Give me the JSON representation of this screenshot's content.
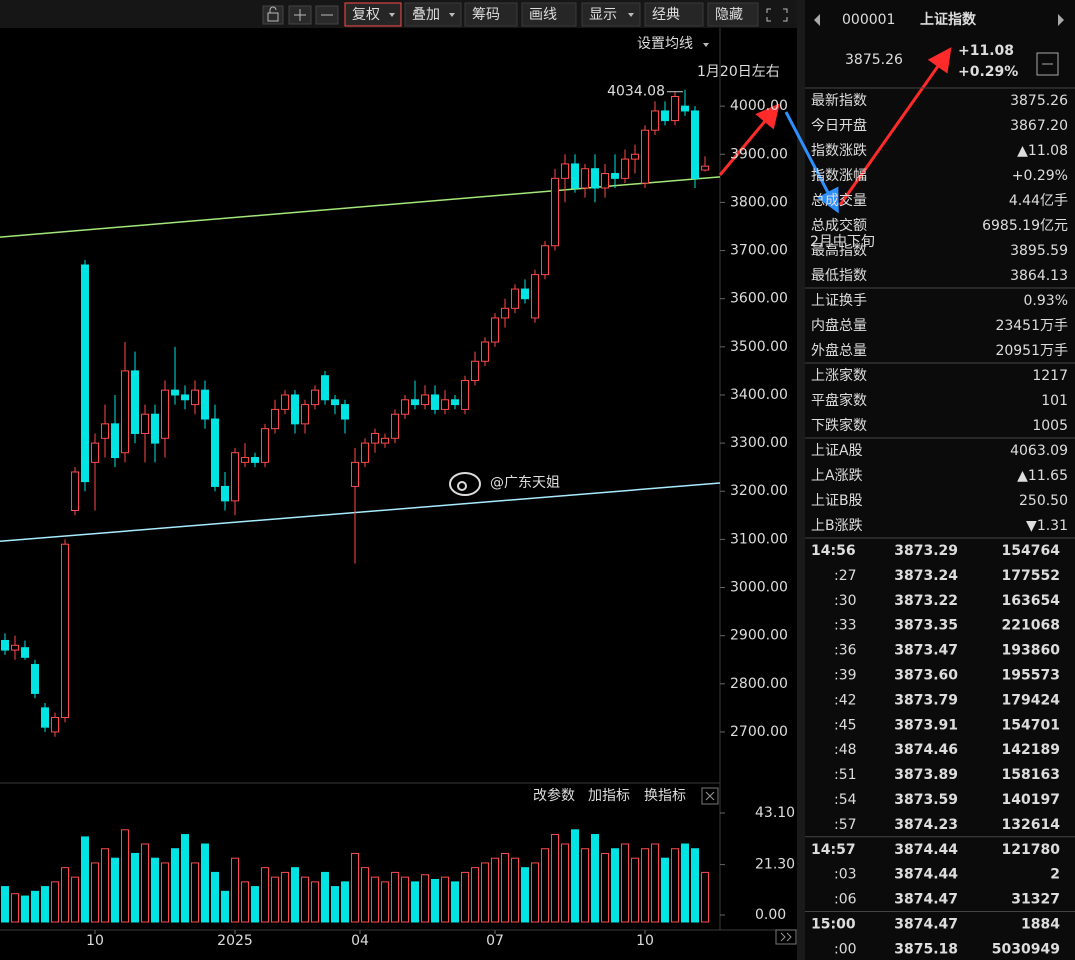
{
  "chart_data": {
    "type": "candlestick",
    "up_color": "#ff4a4a",
    "down_color": "#00e4e4",
    "open": [
      2890,
      2870,
      2875,
      2840,
      2750,
      2700,
      2730,
      3160,
      3670,
      3260,
      3310,
      3340,
      3280,
      3450,
      3320,
      3360,
      3310,
      3410,
      3400,
      3380,
      3410,
      3350,
      3210,
      3180,
      3260,
      3270,
      3260,
      3330,
      3370,
      3400,
      3340,
      3380,
      3440,
      3390,
      3380,
      3210,
      3260,
      3300,
      3300,
      3310,
      3360,
      3390,
      3380,
      3400,
      3370,
      3390,
      3370,
      3430,
      3470,
      3510,
      3560,
      3580,
      3620,
      3560,
      3650,
      3710,
      3850,
      3880,
      3830,
      3870,
      3830,
      3860,
      3850,
      3890,
      3840,
      3950,
      3990,
      3970,
      4000,
      3990,
      3867.2
    ],
    "high": [
      2905,
      2900,
      2890,
      2850,
      2760,
      2740,
      3100,
      3250,
      3680,
      3320,
      3380,
      3400,
      3510,
      3490,
      3380,
      3380,
      3430,
      3500,
      3420,
      3430,
      3430,
      3380,
      3240,
      3290,
      3300,
      3280,
      3340,
      3390,
      3410,
      3410,
      3390,
      3420,
      3450,
      3400,
      3390,
      3290,
      3310,
      3330,
      3320,
      3370,
      3400,
      3430,
      3420,
      3420,
      3410,
      3400,
      3440,
      3490,
      3520,
      3570,
      3600,
      3630,
      3640,
      3660,
      3720,
      3870,
      3900,
      3900,
      3880,
      3900,
      3880,
      3900,
      3910,
      3920,
      3960,
      4010,
      4010,
      4030,
      4034.08,
      4000,
      3895.59
    ],
    "low": [
      2860,
      2850,
      2850,
      2770,
      2700,
      2690,
      2720,
      3150,
      3200,
      3160,
      3270,
      3250,
      3260,
      3300,
      3260,
      3260,
      3270,
      3380,
      3370,
      3360,
      3330,
      3200,
      3160,
      3150,
      3250,
      3250,
      3250,
      3320,
      3360,
      3320,
      3320,
      3370,
      3380,
      3360,
      3320,
      3050,
      3250,
      3280,
      3290,
      3300,
      3350,
      3370,
      3370,
      3360,
      3360,
      3370,
      3360,
      3420,
      3460,
      3500,
      3540,
      3570,
      3590,
      3550,
      3640,
      3700,
      3800,
      3820,
      3810,
      3800,
      3810,
      3830,
      3840,
      3860,
      3830,
      3940,
      3960,
      3960,
      3980,
      3830,
      3864.13
    ],
    "close": [
      2870,
      2880,
      2855,
      2780,
      2710,
      2730,
      3090,
      3240,
      3220,
      3300,
      3340,
      3270,
      3450,
      3320,
      3360,
      3300,
      3410,
      3400,
      3390,
      3410,
      3350,
      3210,
      3180,
      3280,
      3270,
      3260,
      3330,
      3370,
      3400,
      3340,
      3380,
      3410,
      3390,
      3380,
      3350,
      3260,
      3300,
      3320,
      3310,
      3360,
      3390,
      3380,
      3400,
      3370,
      3390,
      3380,
      3430,
      3470,
      3510,
      3560,
      3580,
      3620,
      3600,
      3650,
      3710,
      3850,
      3880,
      3830,
      3870,
      3830,
      3860,
      3850,
      3890,
      3900,
      3950,
      3990,
      3970,
      4020,
      3990,
      3850,
      3875.26
    ],
    "volume": [
      12,
      9,
      8,
      10,
      12,
      14,
      20,
      16,
      33,
      22,
      28,
      24,
      36,
      26,
      30,
      24,
      22,
      28,
      34,
      22,
      30,
      18,
      10,
      24,
      14,
      12,
      20,
      16,
      18,
      20,
      16,
      14,
      18,
      12,
      14,
      26,
      20,
      16,
      14,
      18,
      16,
      14,
      17,
      15,
      16,
      14,
      18,
      20,
      22,
      24,
      26,
      24,
      20,
      22,
      28,
      34,
      30,
      36,
      28,
      34,
      26,
      28,
      30,
      24,
      28,
      30,
      24,
      28,
      30,
      28,
      18
    ],
    "ylim": [
      2650,
      4100
    ],
    "yticks": [
      {
        "value": 2700,
        "label": "2700.00"
      },
      {
        "value": 2800,
        "label": "2800.00"
      },
      {
        "value": 2900,
        "label": "2900.00"
      },
      {
        "value": 3000,
        "label": "3000.00"
      },
      {
        "value": 3100,
        "label": "3100.00"
      },
      {
        "value": 3200,
        "label": "3200.00"
      },
      {
        "value": 3300,
        "label": "3300.00"
      },
      {
        "value": 3400,
        "label": "3400.00"
      },
      {
        "value": 3500,
        "label": "3500.00"
      },
      {
        "value": 3600,
        "label": "3600.00"
      },
      {
        "value": 3700,
        "label": "3700.00"
      },
      {
        "value": 3800,
        "label": "3800.00"
      },
      {
        "value": 3900,
        "label": "3900.00"
      },
      {
        "value": 4000,
        "label": "4000.00"
      }
    ],
    "vol_ylim": [
      0,
      43.1
    ],
    "vol_yticks": [
      {
        "value": 0,
        "label": "0.00"
      },
      {
        "value": 21.3,
        "label": "21.30"
      },
      {
        "value": 43.1,
        "label": "43.10"
      }
    ],
    "xticks": [
      {
        "value": 9,
        "label": "10"
      },
      {
        "value": 23,
        "label": "2025"
      },
      {
        "value": 35.5,
        "label": "04"
      },
      {
        "value": 49,
        "label": "07"
      },
      {
        "value": 64,
        "label": "10"
      }
    ],
    "trendlines": [
      {
        "color": "#a4e878",
        "values": [
          3728,
          3853
        ]
      },
      {
        "color": "#a8ecff",
        "values": [
          3096,
          3217
        ]
      }
    ],
    "annotations": [
      "1月20日左右",
      "2月中下旬"
    ]
  },
  "toolbar": {
    "buttons": [
      "复权",
      "叠加",
      "筹码",
      "画线",
      "显示",
      "经典",
      "隐藏"
    ],
    "ma_setting": "设置均线",
    "indicator_buttons": [
      "改参数",
      "加指标",
      "换指标"
    ]
  },
  "watermark": "@广东天姐",
  "panel": {
    "code": "000001",
    "name": "上证指数",
    "price": "3875.26",
    "change": "+11.08",
    "change_pct": "+0.29%",
    "stats": [
      [
        [
          "最新指数",
          "3875.26",
          "#ff5a5a"
        ],
        [
          "今日开盘",
          "3867.20",
          "#ff5a5a"
        ],
        [
          "指数涨跌",
          "▲11.08",
          "#ff5a5a"
        ],
        [
          "指数涨幅",
          "+0.29%",
          "#ff5a5a"
        ],
        [
          "总成交量",
          "4.44亿手",
          "#e8e8e8"
        ],
        [
          "总成交额",
          "6985.19亿元",
          "#6ec8ff"
        ],
        [
          "最高指数",
          "3895.59",
          "#ff5a5a"
        ],
        [
          "最低指数",
          "3864.13",
          "#ff5a5a"
        ]
      ],
      [
        [
          "上证换手",
          "0.93%",
          "#e8e8e8"
        ],
        [
          "内盘总量",
          "23451万手",
          "#3fdc3f"
        ],
        [
          "外盘总量",
          "20951万手",
          "#ff5a5a"
        ]
      ],
      [
        [
          "上涨家数",
          "1217",
          "#ff5a5a"
        ],
        [
          "平盘家数",
          "101",
          "#e8e8e8"
        ],
        [
          "下跌家数",
          "1005",
          "#3fdc3f"
        ]
      ],
      [
        [
          "上证A股",
          "4063.09",
          "#ff5a5a"
        ],
        [
          "上A涨跌",
          "▲11.65",
          "#ff5a5a"
        ],
        [
          "上证B股",
          "250.50",
          "#ff5a5a"
        ],
        [
          "上B涨跌",
          "▼1.31",
          "#3fdc3f"
        ]
      ]
    ],
    "ticks": [
      [
        [
          "14:56",
          "3873.29",
          "154764",
          "#ff5a5a"
        ],
        [
          ":27",
          "3873.24",
          "177552",
          "#3fdc3f"
        ],
        [
          ":30",
          "3873.22",
          "163654",
          "#3fdc3f"
        ],
        [
          ":33",
          "3873.35",
          "221068",
          "#ff5a5a"
        ],
        [
          ":36",
          "3873.47",
          "193860",
          "#ff5a5a"
        ],
        [
          ":39",
          "3873.60",
          "195573",
          "#ff5a5a"
        ],
        [
          ":42",
          "3873.79",
          "179424",
          "#ff5a5a"
        ],
        [
          ":45",
          "3873.91",
          "154701",
          "#ff5a5a"
        ],
        [
          ":48",
          "3874.46",
          "142189",
          "#ff5a5a"
        ],
        [
          ":51",
          "3873.89",
          "158163",
          "#3fdc3f"
        ],
        [
          ":54",
          "3873.59",
          "140197",
          "#3fdc3f"
        ],
        [
          ":57",
          "3874.23",
          "132614",
          "#ff5a5a"
        ]
      ],
      [
        [
          "14:57",
          "3874.44",
          "121780",
          "#ff5a5a"
        ],
        [
          ":03",
          "3874.44",
          "2",
          "#ff5a5a"
        ],
        [
          ":06",
          "3874.47",
          "31327",
          "#ff5a5a"
        ]
      ],
      [
        [
          "15:00",
          "3874.47",
          "1884",
          "#ff5a5a"
        ],
        [
          ":00",
          "3875.18",
          "5030949",
          "#ff5a5a"
        ]
      ]
    ]
  }
}
